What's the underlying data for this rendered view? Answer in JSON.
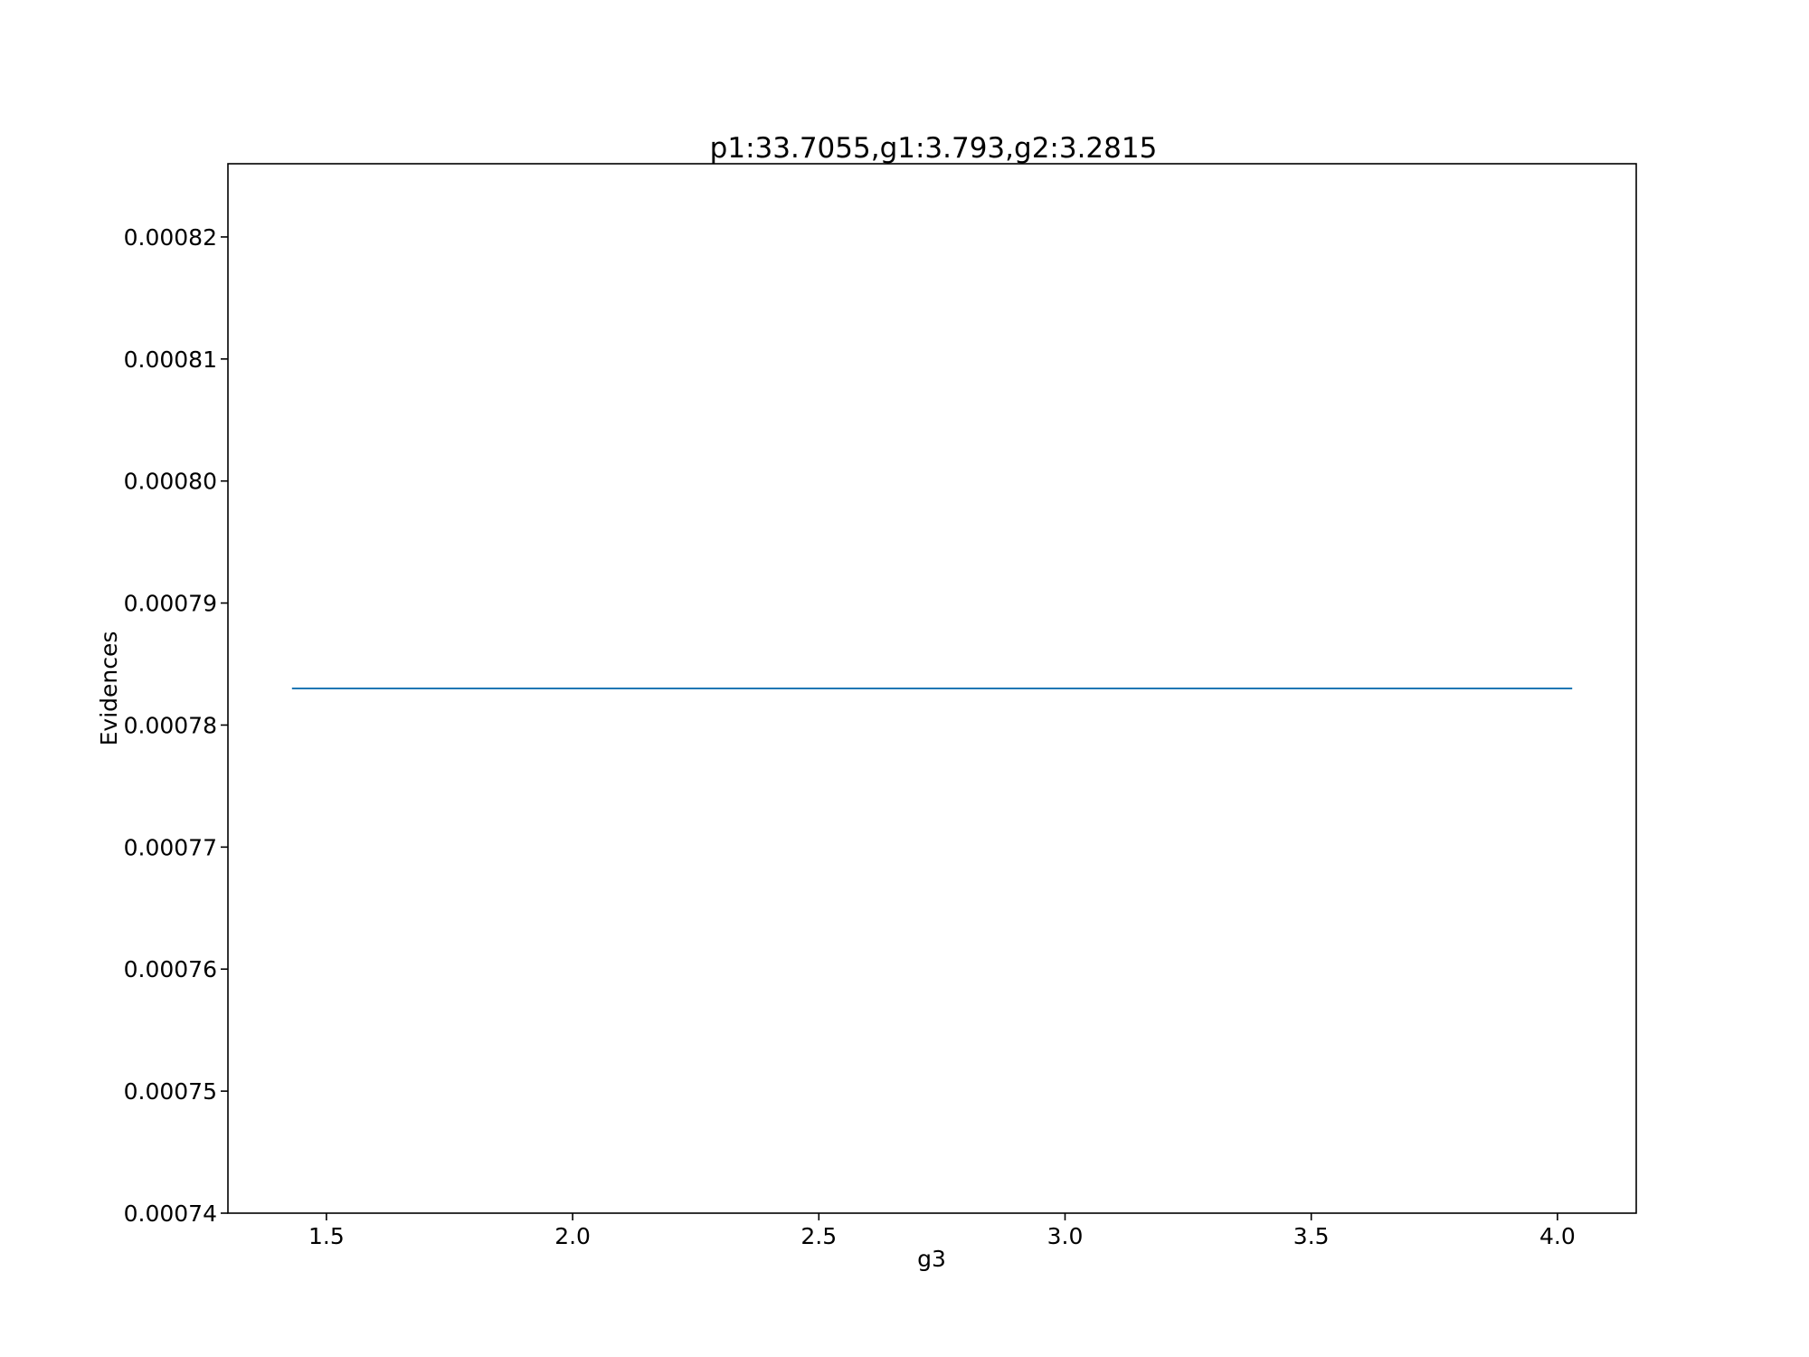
{
  "chart_data": {
    "type": "line",
    "title": "p1:33.7055,g1:3.793,g2:3.2815",
    "xlabel": "g3",
    "ylabel": "Evidences",
    "xlim": [
      1.3,
      4.16
    ],
    "ylim": [
      0.00074,
      0.000826
    ],
    "xticks": [
      1.5,
      2.0,
      2.5,
      3.0,
      3.5,
      4.0
    ],
    "xtick_labels": [
      "1.5",
      "2.0",
      "2.5",
      "3.0",
      "3.5",
      "4.0"
    ],
    "yticks": [
      0.00074,
      0.00075,
      0.00076,
      0.00077,
      0.00078,
      0.00079,
      0.0008,
      0.00081,
      0.00082
    ],
    "ytick_labels": [
      "0.00074",
      "0.00075",
      "0.00076",
      "0.00077",
      "0.00078",
      "0.00079",
      "0.00080",
      "0.00081",
      "0.00082"
    ],
    "grid": false,
    "series": [
      {
        "color": "#1f77b4",
        "x": [
          1.43,
          4.03
        ],
        "y": [
          0.000783,
          0.000783
        ]
      }
    ]
  }
}
